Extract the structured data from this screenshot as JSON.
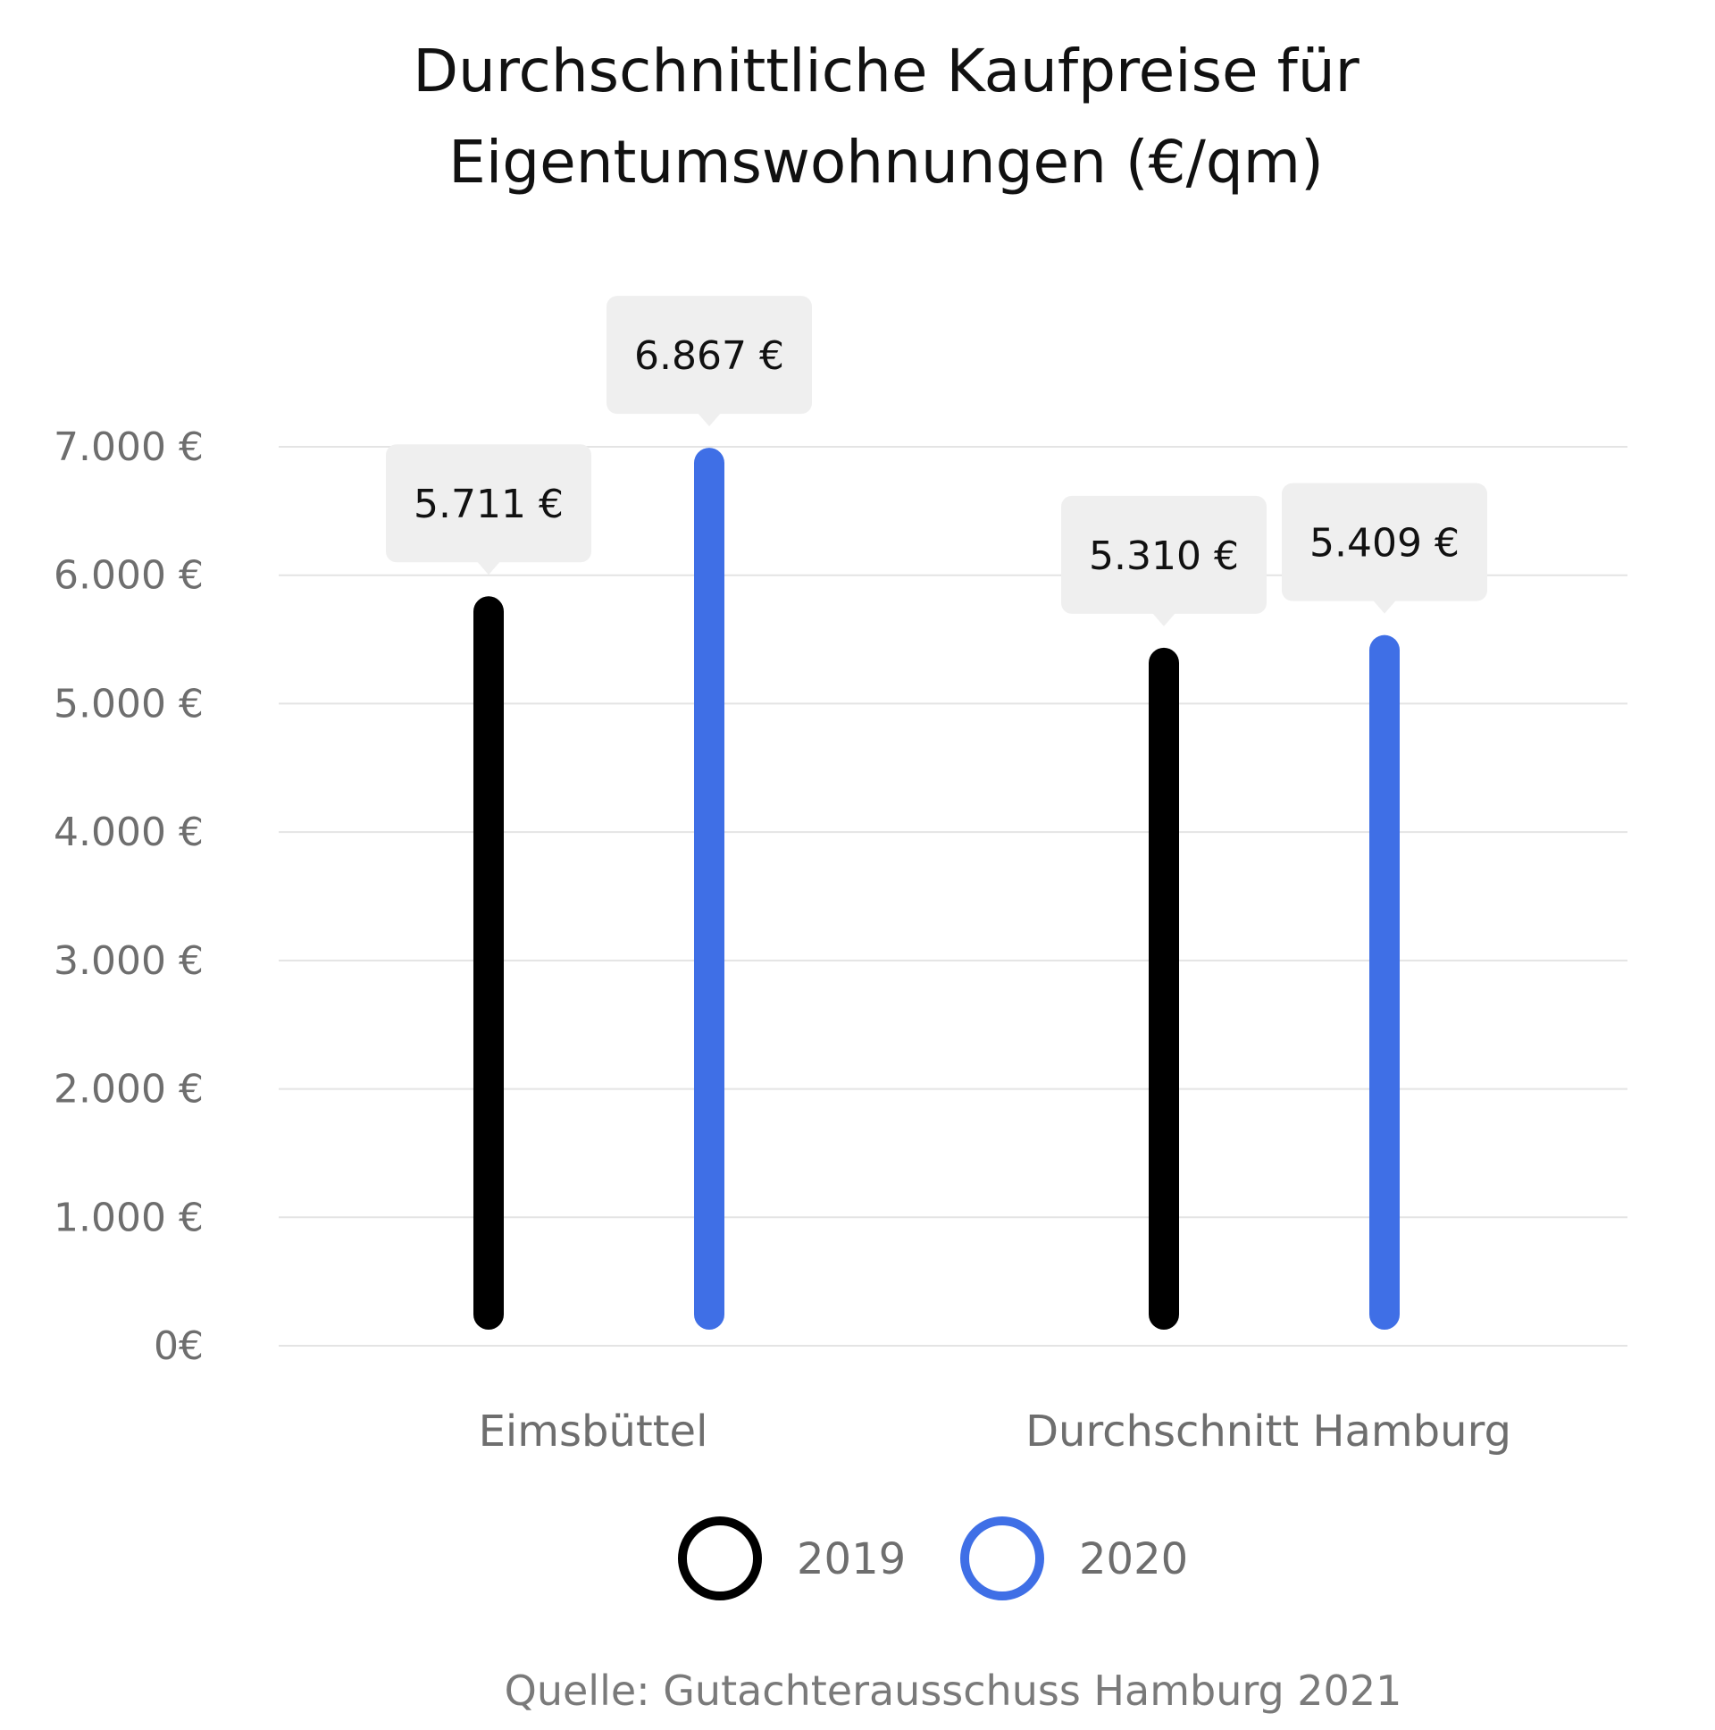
{
  "chart_data": {
    "type": "bar",
    "title_lines": [
      "Durchschnittliche Kaufpreise für",
      "Eigentumswohnungen (€/qm)"
    ],
    "categories": [
      "Eimsbüttel",
      "Durchschnitt Hamburg"
    ],
    "series": [
      {
        "name": "2019",
        "color": "#000000",
        "values": [
          5711,
          5310
        ],
        "value_labels": [
          "5.711 €",
          "5.310 €"
        ]
      },
      {
        "name": "2020",
        "color": "#3f6fe6",
        "values": [
          6867,
          5409
        ],
        "value_labels": [
          "6.867 €",
          "5.409 €"
        ]
      }
    ],
    "ylim": [
      0,
      7000
    ],
    "y_ticks": [
      0,
      1000,
      2000,
      3000,
      4000,
      5000,
      6000,
      7000
    ],
    "y_tick_labels": [
      "0€",
      "1.000 €",
      "2.000 €",
      "3.000 €",
      "4.000 €",
      "5.000 €",
      "6.000 €",
      "7.000 €"
    ],
    "grid": true,
    "legend_position": "bottom-center",
    "source": "Quelle: Gutachterausschuss Hamburg 2021"
  }
}
